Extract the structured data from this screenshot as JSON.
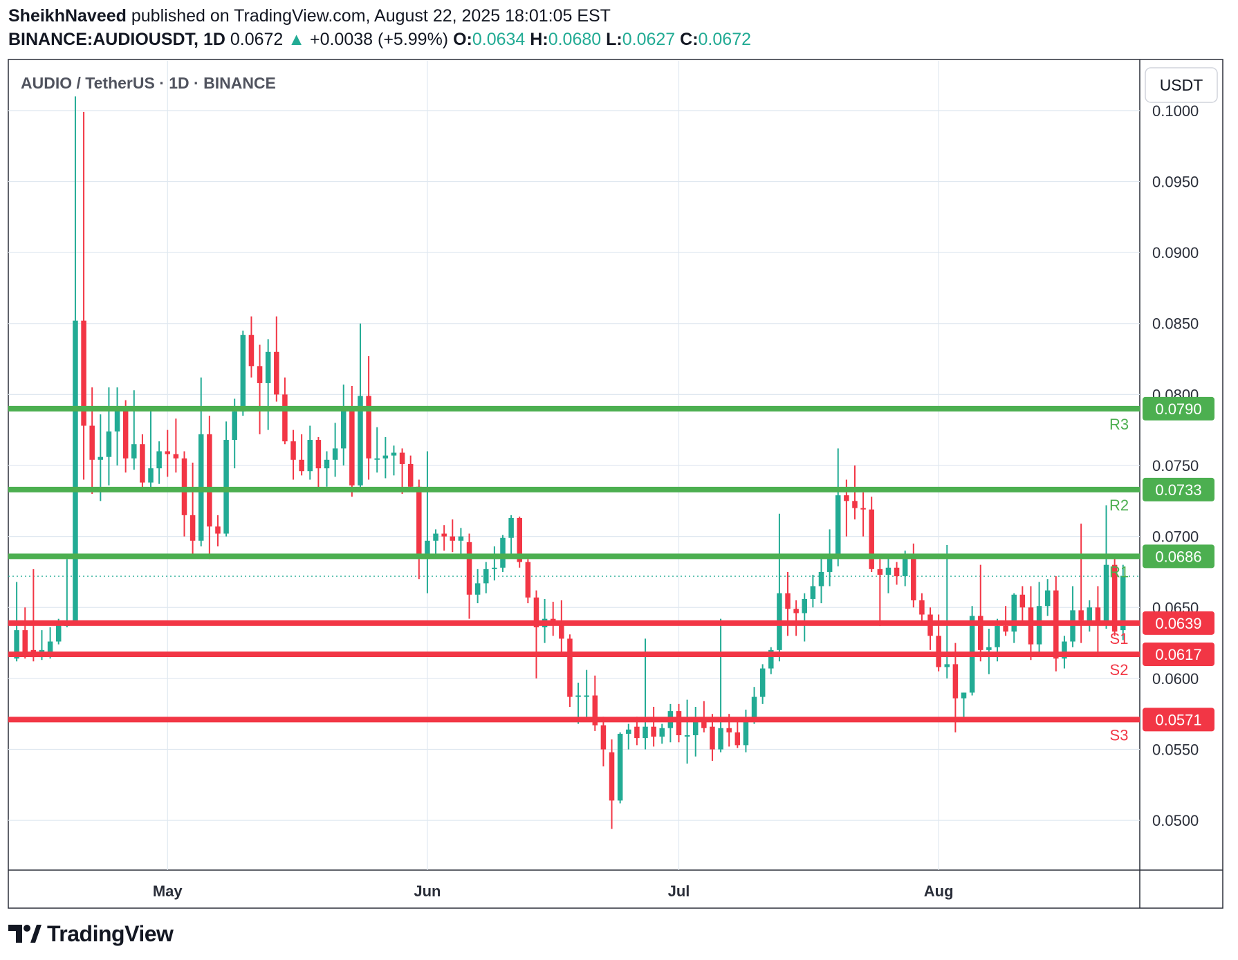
{
  "header": {
    "author": "SheikhNaveed",
    "published_text": "published on TradingView.com, August 22, 2025 18:01:05 EST",
    "symbol": "BINANCE:AUDIOUSDT, 1D",
    "last": "0.0672",
    "change": "+0.0038 (+5.99%)",
    "o_label": "O:",
    "o_value": "0.0634",
    "h_label": "H:",
    "h_value": "0.0680",
    "l_label": "L:",
    "l_value": "0.0627",
    "c_label": "C:",
    "c_value": "0.0672"
  },
  "footer": {
    "brand": "TradingView"
  },
  "colors": {
    "up": "#22ab94",
    "down": "#f23645",
    "support": "#f23645",
    "resistance": "#4caf50",
    "grid": "#e0e8f0",
    "text": "#131722"
  },
  "chart_data": {
    "type": "candlestick",
    "title": "AUDIO / TetherUS · 1D · BINANCE",
    "currency": "USDT",
    "ylim": [
      0.0465,
      0.1035
    ],
    "y_ticks": [
      "0.1000",
      "0.0950",
      "0.0900",
      "0.0850",
      "0.0800",
      "0.0750",
      "0.0700",
      "0.0650",
      "0.0600",
      "0.0550",
      "0.0500"
    ],
    "x_ticks": [
      {
        "label": "May",
        "date": "2025-05-01"
      },
      {
        "label": "Jun",
        "date": "2025-06-01"
      },
      {
        "label": "Jul",
        "date": "2025-07-01"
      },
      {
        "label": "Aug",
        "date": "2025-08-01"
      }
    ],
    "date_range": [
      "2025-04-12",
      "2025-08-25"
    ],
    "last_price": 0.0672,
    "levels": [
      {
        "name": "R3",
        "value": 0.079,
        "label": "0.0790",
        "kind": "resistance"
      },
      {
        "name": "R2",
        "value": 0.0733,
        "label": "0.0733",
        "kind": "resistance"
      },
      {
        "name": "R1",
        "value": 0.0686,
        "label": "0.0686",
        "kind": "resistance"
      },
      {
        "name": "S1",
        "value": 0.0639,
        "label": "0.0639",
        "kind": "support"
      },
      {
        "name": "S2",
        "value": 0.0617,
        "label": "0.0617",
        "kind": "support"
      },
      {
        "name": "S3",
        "value": 0.0571,
        "label": "0.0571",
        "kind": "support"
      }
    ],
    "candles": [
      {
        "d": "2025-04-13",
        "o": 0.0614,
        "h": 0.0668,
        "l": 0.0612,
        "c": 0.0634
      },
      {
        "d": "2025-04-14",
        "o": 0.0634,
        "h": 0.065,
        "l": 0.0614,
        "c": 0.0618
      },
      {
        "d": "2025-04-15",
        "o": 0.062,
        "h": 0.0677,
        "l": 0.0612,
        "c": 0.0615
      },
      {
        "d": "2025-04-16",
        "o": 0.0615,
        "h": 0.0634,
        "l": 0.0613,
        "c": 0.062
      },
      {
        "d": "2025-04-17",
        "o": 0.0618,
        "h": 0.0636,
        "l": 0.0614,
        "c": 0.0626
      },
      {
        "d": "2025-04-18",
        "o": 0.0626,
        "h": 0.0642,
        "l": 0.0624,
        "c": 0.0638
      },
      {
        "d": "2025-04-19",
        "o": 0.0637,
        "h": 0.0684,
        "l": 0.0636,
        "c": 0.064
      },
      {
        "d": "2025-04-20",
        "o": 0.064,
        "h": 0.101,
        "l": 0.0639,
        "c": 0.0852
      },
      {
        "d": "2025-04-21",
        "o": 0.0852,
        "h": 0.0999,
        "l": 0.074,
        "c": 0.0778
      },
      {
        "d": "2025-04-22",
        "o": 0.0778,
        "h": 0.0805,
        "l": 0.073,
        "c": 0.0754
      },
      {
        "d": "2025-04-23",
        "o": 0.0754,
        "h": 0.0786,
        "l": 0.0725,
        "c": 0.0756
      },
      {
        "d": "2025-04-24",
        "o": 0.0756,
        "h": 0.0805,
        "l": 0.0736,
        "c": 0.0774
      },
      {
        "d": "2025-04-25",
        "o": 0.0774,
        "h": 0.0805,
        "l": 0.075,
        "c": 0.079
      },
      {
        "d": "2025-04-26",
        "o": 0.079,
        "h": 0.0796,
        "l": 0.0745,
        "c": 0.0755
      },
      {
        "d": "2025-04-27",
        "o": 0.0755,
        "h": 0.0803,
        "l": 0.0747,
        "c": 0.0765
      },
      {
        "d": "2025-04-28",
        "o": 0.0765,
        "h": 0.0772,
        "l": 0.0733,
        "c": 0.0738
      },
      {
        "d": "2025-04-29",
        "o": 0.0738,
        "h": 0.079,
        "l": 0.0733,
        "c": 0.0748
      },
      {
        "d": "2025-04-30",
        "o": 0.0748,
        "h": 0.0767,
        "l": 0.0737,
        "c": 0.076
      },
      {
        "d": "2025-05-01",
        "o": 0.076,
        "h": 0.0775,
        "l": 0.0742,
        "c": 0.0758
      },
      {
        "d": "2025-05-02",
        "o": 0.0758,
        "h": 0.0783,
        "l": 0.0745,
        "c": 0.0755
      },
      {
        "d": "2025-05-03",
        "o": 0.0755,
        "h": 0.076,
        "l": 0.07,
        "c": 0.0715
      },
      {
        "d": "2025-05-04",
        "o": 0.0715,
        "h": 0.0752,
        "l": 0.0687,
        "c": 0.0697
      },
      {
        "d": "2025-05-05",
        "o": 0.0697,
        "h": 0.0812,
        "l": 0.0693,
        "c": 0.0772
      },
      {
        "d": "2025-05-06",
        "o": 0.0772,
        "h": 0.0785,
        "l": 0.0684,
        "c": 0.0707
      },
      {
        "d": "2025-05-07",
        "o": 0.0707,
        "h": 0.0715,
        "l": 0.0693,
        "c": 0.0702
      },
      {
        "d": "2025-05-08",
        "o": 0.0702,
        "h": 0.0781,
        "l": 0.07,
        "c": 0.0768
      },
      {
        "d": "2025-05-09",
        "o": 0.0768,
        "h": 0.0797,
        "l": 0.0748,
        "c": 0.0788
      },
      {
        "d": "2025-05-10",
        "o": 0.0788,
        "h": 0.0845,
        "l": 0.0785,
        "c": 0.0842
      },
      {
        "d": "2025-05-11",
        "o": 0.0842,
        "h": 0.0855,
        "l": 0.0812,
        "c": 0.082
      },
      {
        "d": "2025-05-12",
        "o": 0.082,
        "h": 0.0835,
        "l": 0.0772,
        "c": 0.0808
      },
      {
        "d": "2025-05-13",
        "o": 0.0808,
        "h": 0.0839,
        "l": 0.0775,
        "c": 0.083
      },
      {
        "d": "2025-05-14",
        "o": 0.083,
        "h": 0.0855,
        "l": 0.0795,
        "c": 0.08
      },
      {
        "d": "2025-05-15",
        "o": 0.08,
        "h": 0.0812,
        "l": 0.0765,
        "c": 0.0767
      },
      {
        "d": "2025-05-16",
        "o": 0.0767,
        "h": 0.0775,
        "l": 0.074,
        "c": 0.0754
      },
      {
        "d": "2025-05-17",
        "o": 0.0754,
        "h": 0.0772,
        "l": 0.0743,
        "c": 0.0746
      },
      {
        "d": "2025-05-18",
        "o": 0.0746,
        "h": 0.0778,
        "l": 0.074,
        "c": 0.0768
      },
      {
        "d": "2025-05-19",
        "o": 0.0768,
        "h": 0.077,
        "l": 0.0733,
        "c": 0.0748
      },
      {
        "d": "2025-05-20",
        "o": 0.0748,
        "h": 0.076,
        "l": 0.0735,
        "c": 0.0754
      },
      {
        "d": "2025-05-21",
        "o": 0.0754,
        "h": 0.078,
        "l": 0.0742,
        "c": 0.0762
      },
      {
        "d": "2025-05-22",
        "o": 0.0762,
        "h": 0.0807,
        "l": 0.075,
        "c": 0.079
      },
      {
        "d": "2025-05-23",
        "o": 0.079,
        "h": 0.0806,
        "l": 0.0728,
        "c": 0.0736
      },
      {
        "d": "2025-05-24",
        "o": 0.0736,
        "h": 0.085,
        "l": 0.0732,
        "c": 0.0799
      },
      {
        "d": "2025-05-25",
        "o": 0.0799,
        "h": 0.0827,
        "l": 0.074,
        "c": 0.0755
      },
      {
        "d": "2025-05-26",
        "o": 0.0755,
        "h": 0.0777,
        "l": 0.0745,
        "c": 0.0755
      },
      {
        "d": "2025-05-27",
        "o": 0.0755,
        "h": 0.077,
        "l": 0.0741,
        "c": 0.0757
      },
      {
        "d": "2025-05-28",
        "o": 0.0757,
        "h": 0.0764,
        "l": 0.0743,
        "c": 0.0759
      },
      {
        "d": "2025-05-29",
        "o": 0.0759,
        "h": 0.0762,
        "l": 0.073,
        "c": 0.0751
      },
      {
        "d": "2025-05-30",
        "o": 0.0751,
        "h": 0.0757,
        "l": 0.0733,
        "c": 0.0735
      },
      {
        "d": "2025-05-31",
        "o": 0.0735,
        "h": 0.074,
        "l": 0.067,
        "c": 0.0685
      },
      {
        "d": "2025-06-01",
        "o": 0.0685,
        "h": 0.076,
        "l": 0.066,
        "c": 0.0697
      },
      {
        "d": "2025-06-02",
        "o": 0.0697,
        "h": 0.0705,
        "l": 0.0685,
        "c": 0.0702
      },
      {
        "d": "2025-06-03",
        "o": 0.0702,
        "h": 0.0708,
        "l": 0.069,
        "c": 0.07
      },
      {
        "d": "2025-06-04",
        "o": 0.07,
        "h": 0.0712,
        "l": 0.0689,
        "c": 0.0697
      },
      {
        "d": "2025-06-05",
        "o": 0.0697,
        "h": 0.0706,
        "l": 0.0685,
        "c": 0.07
      },
      {
        "d": "2025-06-06",
        "o": 0.0696,
        "h": 0.0702,
        "l": 0.0642,
        "c": 0.0659
      },
      {
        "d": "2025-06-07",
        "o": 0.0659,
        "h": 0.0677,
        "l": 0.0653,
        "c": 0.0667
      },
      {
        "d": "2025-06-08",
        "o": 0.0667,
        "h": 0.0682,
        "l": 0.066,
        "c": 0.0677
      },
      {
        "d": "2025-06-09",
        "o": 0.0677,
        "h": 0.0693,
        "l": 0.0669,
        "c": 0.0678
      },
      {
        "d": "2025-06-10",
        "o": 0.0678,
        "h": 0.0701,
        "l": 0.0675,
        "c": 0.0699
      },
      {
        "d": "2025-06-11",
        "o": 0.0699,
        "h": 0.0715,
        "l": 0.0687,
        "c": 0.0713
      },
      {
        "d": "2025-06-12",
        "o": 0.0713,
        "h": 0.0714,
        "l": 0.0678,
        "c": 0.0682
      },
      {
        "d": "2025-06-13",
        "o": 0.0682,
        "h": 0.0684,
        "l": 0.0653,
        "c": 0.0657
      },
      {
        "d": "2025-06-14",
        "o": 0.0657,
        "h": 0.0662,
        "l": 0.06,
        "c": 0.0636
      },
      {
        "d": "2025-06-15",
        "o": 0.0636,
        "h": 0.0656,
        "l": 0.0625,
        "c": 0.0642
      },
      {
        "d": "2025-06-16",
        "o": 0.0642,
        "h": 0.0654,
        "l": 0.063,
        "c": 0.0638
      },
      {
        "d": "2025-06-17",
        "o": 0.0638,
        "h": 0.0655,
        "l": 0.0616,
        "c": 0.0628
      },
      {
        "d": "2025-06-18",
        "o": 0.0628,
        "h": 0.0631,
        "l": 0.058,
        "c": 0.0587
      },
      {
        "d": "2025-06-19",
        "o": 0.0587,
        "h": 0.0597,
        "l": 0.0568,
        "c": 0.0588
      },
      {
        "d": "2025-06-20",
        "o": 0.0588,
        "h": 0.0606,
        "l": 0.0571,
        "c": 0.0588
      },
      {
        "d": "2025-06-21",
        "o": 0.0588,
        "h": 0.0602,
        "l": 0.0563,
        "c": 0.0567
      },
      {
        "d": "2025-06-22",
        "o": 0.0567,
        "h": 0.0573,
        "l": 0.0538,
        "c": 0.055
      },
      {
        "d": "2025-06-23",
        "o": 0.0548,
        "h": 0.0557,
        "l": 0.0494,
        "c": 0.0514
      },
      {
        "d": "2025-06-24",
        "o": 0.0514,
        "h": 0.0562,
        "l": 0.0512,
        "c": 0.0561
      },
      {
        "d": "2025-06-25",
        "o": 0.0561,
        "h": 0.0568,
        "l": 0.055,
        "c": 0.0564
      },
      {
        "d": "2025-06-26",
        "o": 0.0566,
        "h": 0.0573,
        "l": 0.0553,
        "c": 0.0558
      },
      {
        "d": "2025-06-27",
        "o": 0.0558,
        "h": 0.0628,
        "l": 0.055,
        "c": 0.0566
      },
      {
        "d": "2025-06-28",
        "o": 0.0566,
        "h": 0.058,
        "l": 0.0552,
        "c": 0.0559
      },
      {
        "d": "2025-06-29",
        "o": 0.0559,
        "h": 0.0568,
        "l": 0.0554,
        "c": 0.0565
      },
      {
        "d": "2025-06-30",
        "o": 0.0565,
        "h": 0.0582,
        "l": 0.0555,
        "c": 0.0577
      },
      {
        "d": "2025-07-01",
        "o": 0.0577,
        "h": 0.0582,
        "l": 0.0555,
        "c": 0.056
      },
      {
        "d": "2025-07-02",
        "o": 0.056,
        "h": 0.0585,
        "l": 0.054,
        "c": 0.056
      },
      {
        "d": "2025-07-03",
        "o": 0.056,
        "h": 0.058,
        "l": 0.0545,
        "c": 0.0571
      },
      {
        "d": "2025-07-04",
        "o": 0.0571,
        "h": 0.0584,
        "l": 0.0562,
        "c": 0.0565
      },
      {
        "d": "2025-07-05",
        "o": 0.0566,
        "h": 0.0575,
        "l": 0.0542,
        "c": 0.055
      },
      {
        "d": "2025-07-06",
        "o": 0.055,
        "h": 0.0642,
        "l": 0.0548,
        "c": 0.0565
      },
      {
        "d": "2025-07-07",
        "o": 0.0565,
        "h": 0.0575,
        "l": 0.0552,
        "c": 0.0562
      },
      {
        "d": "2025-07-08",
        "o": 0.0562,
        "h": 0.057,
        "l": 0.0551,
        "c": 0.0553
      },
      {
        "d": "2025-07-09",
        "o": 0.0553,
        "h": 0.0578,
        "l": 0.0548,
        "c": 0.057
      },
      {
        "d": "2025-07-10",
        "o": 0.057,
        "h": 0.0594,
        "l": 0.0568,
        "c": 0.0587
      },
      {
        "d": "2025-07-11",
        "o": 0.0587,
        "h": 0.061,
        "l": 0.0582,
        "c": 0.0607
      },
      {
        "d": "2025-07-12",
        "o": 0.0607,
        "h": 0.0622,
        "l": 0.0603,
        "c": 0.062
      },
      {
        "d": "2025-07-13",
        "o": 0.062,
        "h": 0.0716,
        "l": 0.0612,
        "c": 0.066
      },
      {
        "d": "2025-07-14",
        "o": 0.066,
        "h": 0.0675,
        "l": 0.063,
        "c": 0.0649
      },
      {
        "d": "2025-07-15",
        "o": 0.0649,
        "h": 0.0655,
        "l": 0.063,
        "c": 0.0646
      },
      {
        "d": "2025-07-16",
        "o": 0.0646,
        "h": 0.066,
        "l": 0.0626,
        "c": 0.0656
      },
      {
        "d": "2025-07-17",
        "o": 0.0656,
        "h": 0.0673,
        "l": 0.065,
        "c": 0.0665
      },
      {
        "d": "2025-07-18",
        "o": 0.0665,
        "h": 0.0685,
        "l": 0.0653,
        "c": 0.0675
      },
      {
        "d": "2025-07-19",
        "o": 0.0675,
        "h": 0.0705,
        "l": 0.0665,
        "c": 0.0686
      },
      {
        "d": "2025-07-20",
        "o": 0.0686,
        "h": 0.0762,
        "l": 0.0679,
        "c": 0.0729
      },
      {
        "d": "2025-07-21",
        "o": 0.0729,
        "h": 0.074,
        "l": 0.07,
        "c": 0.0725
      },
      {
        "d": "2025-07-22",
        "o": 0.0725,
        "h": 0.075,
        "l": 0.0712,
        "c": 0.072
      },
      {
        "d": "2025-07-23",
        "o": 0.072,
        "h": 0.0731,
        "l": 0.07,
        "c": 0.0719
      },
      {
        "d": "2025-07-24",
        "o": 0.0719,
        "h": 0.0728,
        "l": 0.0675,
        "c": 0.0677
      },
      {
        "d": "2025-07-25",
        "o": 0.0677,
        "h": 0.0687,
        "l": 0.0637,
        "c": 0.0673
      },
      {
        "d": "2025-07-26",
        "o": 0.0673,
        "h": 0.0685,
        "l": 0.066,
        "c": 0.0678
      },
      {
        "d": "2025-07-27",
        "o": 0.0678,
        "h": 0.0682,
        "l": 0.0666,
        "c": 0.0672
      },
      {
        "d": "2025-07-28",
        "o": 0.0672,
        "h": 0.069,
        "l": 0.0665,
        "c": 0.0686
      },
      {
        "d": "2025-07-29",
        "o": 0.0686,
        "h": 0.0695,
        "l": 0.065,
        "c": 0.0655
      },
      {
        "d": "2025-07-30",
        "o": 0.0655,
        "h": 0.066,
        "l": 0.064,
        "c": 0.0645
      },
      {
        "d": "2025-07-31",
        "o": 0.0645,
        "h": 0.065,
        "l": 0.062,
        "c": 0.063
      },
      {
        "d": "2025-08-01",
        "o": 0.063,
        "h": 0.0645,
        "l": 0.0605,
        "c": 0.0608
      },
      {
        "d": "2025-08-02",
        "o": 0.0608,
        "h": 0.0694,
        "l": 0.06,
        "c": 0.061
      },
      {
        "d": "2025-08-03",
        "o": 0.061,
        "h": 0.0625,
        "l": 0.0562,
        "c": 0.0586
      },
      {
        "d": "2025-08-04",
        "o": 0.0586,
        "h": 0.059,
        "l": 0.057,
        "c": 0.059
      },
      {
        "d": "2025-08-05",
        "o": 0.059,
        "h": 0.0651,
        "l": 0.0588,
        "c": 0.0644
      },
      {
        "d": "2025-08-06",
        "o": 0.0644,
        "h": 0.068,
        "l": 0.0612,
        "c": 0.062
      },
      {
        "d": "2025-08-07",
        "o": 0.062,
        "h": 0.0635,
        "l": 0.0603,
        "c": 0.0622
      },
      {
        "d": "2025-08-08",
        "o": 0.0622,
        "h": 0.0642,
        "l": 0.0612,
        "c": 0.0637
      },
      {
        "d": "2025-08-09",
        "o": 0.0637,
        "h": 0.0651,
        "l": 0.063,
        "c": 0.0633
      },
      {
        "d": "2025-08-10",
        "o": 0.0633,
        "h": 0.066,
        "l": 0.0625,
        "c": 0.0659
      },
      {
        "d": "2025-08-11",
        "o": 0.0659,
        "h": 0.0665,
        "l": 0.0639,
        "c": 0.065
      },
      {
        "d": "2025-08-12",
        "o": 0.065,
        "h": 0.0665,
        "l": 0.0613,
        "c": 0.0624
      },
      {
        "d": "2025-08-13",
        "o": 0.0624,
        "h": 0.0668,
        "l": 0.0618,
        "c": 0.0651
      },
      {
        "d": "2025-08-14",
        "o": 0.0651,
        "h": 0.067,
        "l": 0.0644,
        "c": 0.0662
      },
      {
        "d": "2025-08-15",
        "o": 0.0662,
        "h": 0.0672,
        "l": 0.0605,
        "c": 0.0614
      },
      {
        "d": "2025-08-16",
        "o": 0.0614,
        "h": 0.063,
        "l": 0.0607,
        "c": 0.0626
      },
      {
        "d": "2025-08-17",
        "o": 0.0626,
        "h": 0.0665,
        "l": 0.0622,
        "c": 0.0648
      },
      {
        "d": "2025-08-18",
        "o": 0.0648,
        "h": 0.0709,
        "l": 0.0625,
        "c": 0.0641
      },
      {
        "d": "2025-08-19",
        "o": 0.064,
        "h": 0.0655,
        "l": 0.0633,
        "c": 0.065
      },
      {
        "d": "2025-08-20",
        "o": 0.065,
        "h": 0.0665,
        "l": 0.0615,
        "c": 0.0638
      },
      {
        "d": "2025-08-21",
        "o": 0.0638,
        "h": 0.0722,
        "l": 0.0635,
        "c": 0.068
      },
      {
        "d": "2025-08-22",
        "o": 0.068,
        "h": 0.0685,
        "l": 0.063,
        "c": 0.0633
      },
      {
        "d": "2025-08-23",
        "o": 0.0634,
        "h": 0.068,
        "l": 0.0627,
        "c": 0.0672
      }
    ]
  }
}
